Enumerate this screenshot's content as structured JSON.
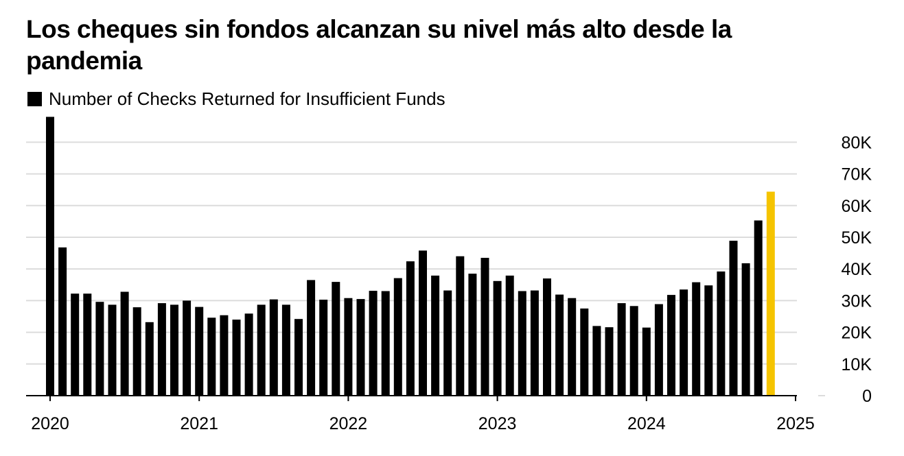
{
  "chart_data": {
    "type": "bar",
    "title": "Los cheques sin fondos alcanzan su nivel más alto desde la pandemia",
    "legend": [
      "Number of Checks Returned for Insufficient Funds"
    ],
    "legend_placement": "top-left",
    "xlabel": "",
    "ylabel": "",
    "ylim": [
      0,
      90000
    ],
    "yticks": [
      0,
      10000,
      20000,
      30000,
      40000,
      50000,
      60000,
      70000,
      80000
    ],
    "ytick_labels": [
      "0",
      "10K",
      "20K",
      "30K",
      "40K",
      "50K",
      "60K",
      "70K",
      "80K"
    ],
    "x_year_labels": [
      "2020",
      "2021",
      "2022",
      "2023",
      "2024",
      "2025"
    ],
    "grid": true,
    "series": [
      {
        "name": "Number of Checks Returned for Insufficient Funds",
        "color": "#000000",
        "highlight_color": "#f5c400",
        "highlight_last": true,
        "values": [
          88000,
          46800,
          32200,
          32200,
          29600,
          28700,
          32800,
          27900,
          23200,
          29200,
          28700,
          30000,
          28000,
          24600,
          25400,
          24000,
          25900,
          28700,
          30400,
          28700,
          24200,
          36500,
          30300,
          35900,
          30800,
          30500,
          33100,
          33000,
          37100,
          42400,
          45800,
          37900,
          33200,
          44000,
          38500,
          43500,
          36200,
          37900,
          33000,
          33200,
          37000,
          31900,
          30800,
          27500,
          22000,
          21600,
          29200,
          28300,
          21500,
          28900,
          31800,
          33500,
          35800,
          34800,
          39200,
          48900,
          41800,
          55300,
          64400
        ]
      }
    ]
  }
}
